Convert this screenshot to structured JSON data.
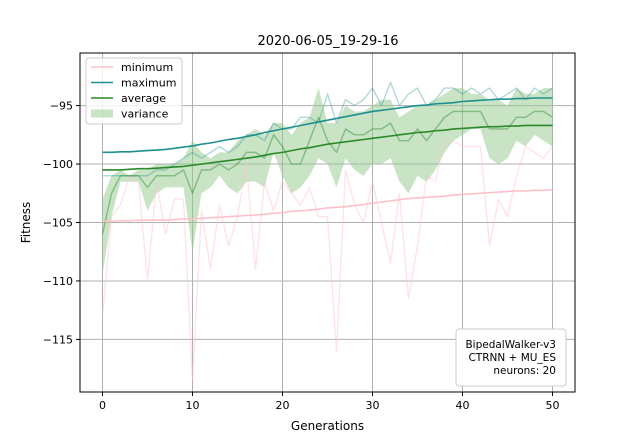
{
  "chart_data": {
    "type": "line",
    "title": "2020-06-05_19-29-16",
    "xlabel": "Generations",
    "ylabel": "Fitness",
    "xlim": [
      -2.5,
      52.5
    ],
    "ylim": [
      -119.5,
      -90.5
    ],
    "xticks": [
      0,
      10,
      20,
      30,
      40,
      50
    ],
    "yticks": [
      -115,
      -110,
      -105,
      -100,
      -95
    ],
    "grid": true,
    "legend_position": "top-left",
    "info_box": {
      "position": "bottom-right",
      "lines": [
        "BipedalWalker-v3",
        "CTRNN + MU_ES",
        "neurons: 20"
      ]
    },
    "colors": {
      "minimum": "#ffc0cb",
      "maximum": "#1f8f8f",
      "average": "#2a8a2a",
      "variance": "#92c98c"
    },
    "x": [
      0,
      1,
      2,
      3,
      4,
      5,
      6,
      7,
      8,
      9,
      10,
      11,
      12,
      13,
      14,
      15,
      16,
      17,
      18,
      19,
      20,
      21,
      22,
      23,
      24,
      25,
      26,
      27,
      28,
      29,
      30,
      31,
      32,
      33,
      34,
      35,
      36,
      37,
      38,
      39,
      40,
      41,
      42,
      43,
      44,
      45,
      46,
      47,
      48,
      49,
      50
    ],
    "series": [
      {
        "name": "minimum",
        "raw": [
          -113.0,
          -104.5,
          -103.5,
          -101.0,
          -101.5,
          -110.0,
          -101.5,
          -106.0,
          -103.0,
          -103.0,
          -118.5,
          -104.0,
          -109.0,
          -103.5,
          -107.0,
          -104.5,
          -100.0,
          -109.0,
          -101.5,
          -104.0,
          -101.5,
          -102.5,
          -103.5,
          -102.0,
          -104.5,
          -104.5,
          -116.0,
          -100.5,
          -103.5,
          -105.0,
          -101.5,
          -105.0,
          -108.5,
          -102.5,
          -111.5,
          -107.0,
          -101.0,
          -101.5,
          -98.0,
          -98.0,
          -98.5,
          -98.5,
          -98.5,
          -107.0,
          -103.0,
          -104.5,
          -101.0,
          -98.5,
          -99.0,
          -99.5,
          -98.5
        ],
        "smooth": [
          -104.9,
          -104.9,
          -104.85,
          -104.85,
          -104.8,
          -104.8,
          -104.8,
          -104.8,
          -104.75,
          -104.7,
          -104.7,
          -104.65,
          -104.6,
          -104.55,
          -104.5,
          -104.45,
          -104.4,
          -104.35,
          -104.3,
          -104.2,
          -104.15,
          -104.05,
          -104.0,
          -103.95,
          -103.85,
          -103.75,
          -103.7,
          -103.65,
          -103.55,
          -103.45,
          -103.35,
          -103.25,
          -103.15,
          -103.05,
          -102.95,
          -102.9,
          -102.85,
          -102.8,
          -102.75,
          -102.65,
          -102.6,
          -102.55,
          -102.5,
          -102.45,
          -102.4,
          -102.35,
          -102.3,
          -102.3,
          -102.25,
          -102.25,
          -102.2
        ]
      },
      {
        "name": "maximum",
        "raw": [
          -101.0,
          -101.0,
          -101.0,
          -101.0,
          -101.0,
          -101.0,
          -100.5,
          -100.5,
          -100.0,
          -99.5,
          -99.0,
          -99.5,
          -99.0,
          -98.5,
          -99.0,
          -98.5,
          -97.5,
          -97.5,
          -98.0,
          -96.5,
          -97.0,
          -97.0,
          -96.0,
          -96.0,
          -96.5,
          -94.0,
          -96.5,
          -94.5,
          -95.0,
          -94.5,
          -93.5,
          -95.0,
          -93.0,
          -95.0,
          -94.0,
          -93.5,
          -95.0,
          -94.5,
          -93.5,
          -93.5,
          -94.0,
          -93.5,
          -94.0,
          -93.5,
          -94.5,
          -94.0,
          -93.5,
          -94.5,
          -93.5,
          -94.0,
          -93.5
        ],
        "smooth": [
          -99.0,
          -99.0,
          -98.95,
          -98.95,
          -98.9,
          -98.85,
          -98.8,
          -98.75,
          -98.65,
          -98.55,
          -98.45,
          -98.3,
          -98.2,
          -98.05,
          -97.9,
          -97.8,
          -97.65,
          -97.5,
          -97.3,
          -97.15,
          -97.0,
          -96.85,
          -96.7,
          -96.55,
          -96.4,
          -96.25,
          -96.1,
          -95.95,
          -95.8,
          -95.65,
          -95.5,
          -95.4,
          -95.3,
          -95.2,
          -95.1,
          -95.0,
          -94.95,
          -94.85,
          -94.8,
          -94.75,
          -94.65,
          -94.6,
          -94.55,
          -94.5,
          -94.45,
          -94.45,
          -94.4,
          -94.4,
          -94.35,
          -94.35,
          -94.35
        ]
      },
      {
        "name": "average",
        "raw": [
          -106.0,
          -102.5,
          -101.0,
          -101.0,
          -101.0,
          -102.0,
          -101.0,
          -101.0,
          -101.0,
          -100.5,
          -102.5,
          -100.5,
          -100.5,
          -100.0,
          -100.5,
          -100.0,
          -99.0,
          -99.0,
          -99.5,
          -97.5,
          -98.5,
          -100.0,
          -100.0,
          -98.0,
          -96.0,
          -98.0,
          -99.0,
          -97.0,
          -97.5,
          -97.5,
          -97.0,
          -97.0,
          -96.5,
          -98.0,
          -98.0,
          -97.0,
          -98.0,
          -97.0,
          -96.0,
          -95.5,
          -95.5,
          -95.5,
          -95.5,
          -97.0,
          -97.0,
          -97.0,
          -96.0,
          -96.0,
          -95.5,
          -95.5,
          -96.0
        ],
        "smooth": [
          -100.5,
          -100.5,
          -100.5,
          -100.45,
          -100.4,
          -100.4,
          -100.35,
          -100.3,
          -100.25,
          -100.2,
          -100.1,
          -100.0,
          -99.9,
          -99.8,
          -99.7,
          -99.6,
          -99.5,
          -99.4,
          -99.25,
          -99.1,
          -99.0,
          -98.85,
          -98.7,
          -98.6,
          -98.45,
          -98.3,
          -98.2,
          -98.1,
          -98.0,
          -97.9,
          -97.8,
          -97.7,
          -97.6,
          -97.5,
          -97.4,
          -97.3,
          -97.25,
          -97.15,
          -97.1,
          -97.0,
          -96.95,
          -96.9,
          -96.85,
          -96.8,
          -96.8,
          -96.75,
          -96.75,
          -96.7,
          -96.7,
          -96.7,
          -96.7
        ]
      },
      {
        "name": "variance",
        "upper": [
          -103.0,
          -101.0,
          -100.5,
          -101.0,
          -100.5,
          -100.5,
          -100.0,
          -100.0,
          -100.0,
          -99.5,
          -98.0,
          -99.0,
          -99.5,
          -99.0,
          -99.0,
          -98.0,
          -97.5,
          -97.0,
          -97.5,
          -96.5,
          -96.5,
          -97.5,
          -96.5,
          -96.0,
          -93.5,
          -96.5,
          -96.5,
          -95.0,
          -95.5,
          -95.5,
          -95.0,
          -94.5,
          -94.5,
          -96.0,
          -95.5,
          -95.0,
          -95.0,
          -94.5,
          -94.0,
          -93.5,
          -93.5,
          -94.0,
          -94.0,
          -94.5,
          -94.5,
          -95.0,
          -93.5,
          -94.0,
          -94.0,
          -93.5,
          -93.5
        ],
        "lower": [
          -109.5,
          -104.5,
          -101.5,
          -101.5,
          -101.5,
          -104.0,
          -102.5,
          -102.0,
          -102.0,
          -102.0,
          -107.5,
          -102.5,
          -102.0,
          -101.0,
          -102.0,
          -102.5,
          -101.5,
          -101.5,
          -102.0,
          -99.0,
          -101.0,
          -102.5,
          -102.0,
          -101.0,
          -99.5,
          -100.0,
          -102.0,
          -99.5,
          -100.5,
          -101.0,
          -100.0,
          -100.0,
          -99.5,
          -101.5,
          -102.5,
          -101.0,
          -101.5,
          -100.5,
          -99.0,
          -98.0,
          -97.5,
          -97.0,
          -97.0,
          -99.5,
          -100.0,
          -99.5,
          -98.0,
          -98.5,
          -97.5,
          -98.0,
          -98.5
        ]
      }
    ]
  }
}
